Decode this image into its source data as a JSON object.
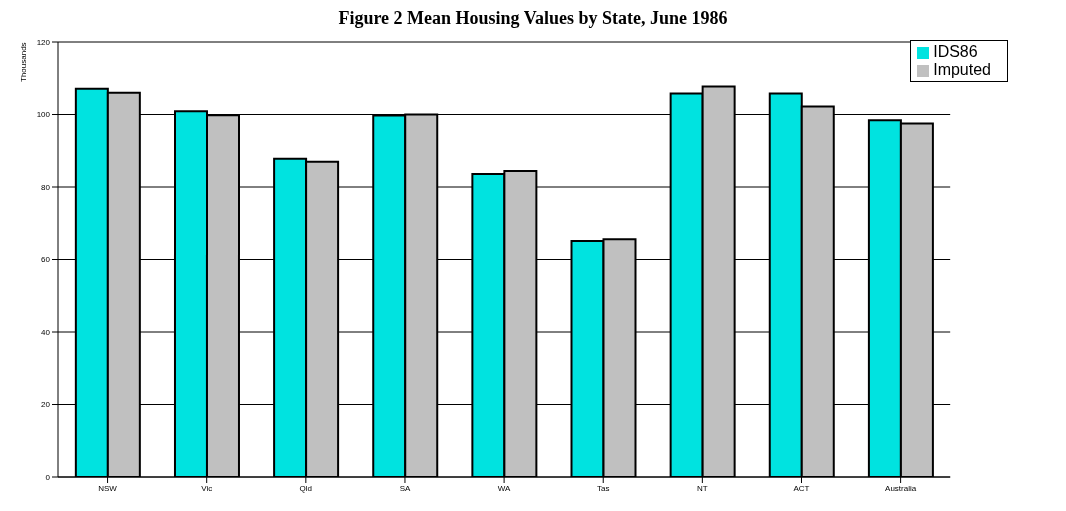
{
  "chart_data": {
    "type": "bar",
    "title": "Figure 2 Mean Housing Values by State, June 1986",
    "ylabel": "Thousands",
    "categories": [
      "NSW",
      "Vic",
      "Qld",
      "SA",
      "WA",
      "Tas",
      "NT",
      "ACT",
      "Australia"
    ],
    "series": [
      {
        "name": "IDS86",
        "color": "#00e3e0",
        "values": [
          107.1,
          100.9,
          87.8,
          99.7,
          83.6,
          65.1,
          105.8,
          105.8,
          98.4
        ]
      },
      {
        "name": "Imputed",
        "color": "#c0c0c0",
        "values": [
          106.0,
          99.8,
          87.0,
          100.0,
          84.4,
          65.6,
          107.7,
          102.2,
          97.5
        ]
      }
    ],
    "ylim": [
      0,
      120
    ],
    "yticks": [
      0,
      20,
      40,
      60,
      80,
      100,
      120
    ],
    "grid": "y",
    "legend": "top right"
  }
}
